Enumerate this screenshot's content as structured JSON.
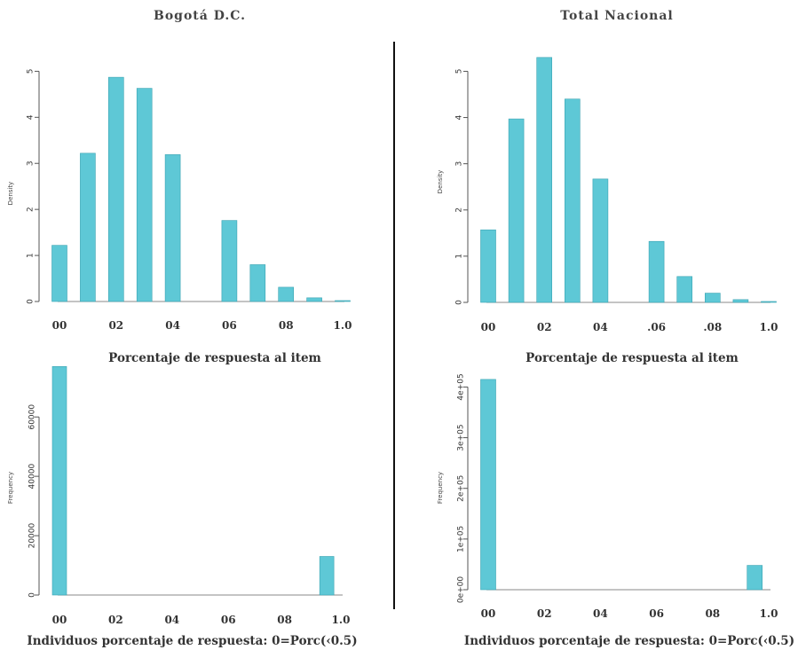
{
  "headers": {
    "left": "Bogotá D.C.",
    "right": "Total Nacional"
  },
  "chart_data": [
    {
      "type": "bar",
      "panel": "top-left",
      "xlabel": "Porcentaje de respuesta al item",
      "ylabel": "Density",
      "x_ticks": [
        "00",
        "02",
        "04",
        "06",
        "08",
        "1.0"
      ],
      "y_ticks": [
        "0",
        "1",
        "2",
        "3",
        "4",
        "5"
      ],
      "xlim": [
        0,
        1
      ],
      "ylim": [
        0,
        5.2
      ],
      "bins": [
        {
          "x": 0.0,
          "value": 1.22
        },
        {
          "x": 0.1,
          "value": 3.22
        },
        {
          "x": 0.2,
          "value": 4.87
        },
        {
          "x": 0.3,
          "value": 4.63
        },
        {
          "x": 0.4,
          "value": 3.19
        },
        {
          "x": 0.5,
          "value": 0.0
        },
        {
          "x": 0.6,
          "value": 1.76
        },
        {
          "x": 0.7,
          "value": 0.8
        },
        {
          "x": 0.8,
          "value": 0.31
        },
        {
          "x": 0.9,
          "value": 0.08
        },
        {
          "x": 1.0,
          "value": 0.02
        }
      ]
    },
    {
      "type": "bar",
      "panel": "top-right",
      "xlabel": "Porcentaje de respuesta al item",
      "ylabel": "Density",
      "x_ticks": [
        "00",
        "02",
        "04",
        ".06",
        ".08",
        "1.0"
      ],
      "y_ticks": [
        "0",
        "1",
        "2",
        "3",
        "4",
        "5"
      ],
      "xlim": [
        0,
        1
      ],
      "ylim": [
        0,
        5.2
      ],
      "bins": [
        {
          "x": 0.0,
          "value": 1.57
        },
        {
          "x": 0.1,
          "value": 3.97
        },
        {
          "x": 0.2,
          "value": 5.3
        },
        {
          "x": 0.3,
          "value": 4.4
        },
        {
          "x": 0.4,
          "value": 2.67
        },
        {
          "x": 0.5,
          "value": 0.0
        },
        {
          "x": 0.6,
          "value": 1.32
        },
        {
          "x": 0.7,
          "value": 0.56
        },
        {
          "x": 0.8,
          "value": 0.2
        },
        {
          "x": 0.9,
          "value": 0.06
        },
        {
          "x": 1.0,
          "value": 0.02
        }
      ]
    },
    {
      "type": "bar",
      "panel": "bottom-left",
      "xlabel": "Individuos porcentaje de respuesta: 0=Porc(‹0.5)",
      "ylabel": "Frequency",
      "x_ticks": [
        "00",
        "02",
        "04",
        "06",
        "08",
        "1.0"
      ],
      "y_ticks": [
        "0",
        "20000",
        "40000",
        "60000"
      ],
      "y_tick_values": [
        0,
        20000,
        40000,
        60000
      ],
      "xlim": [
        0,
        1
      ],
      "ylim": [
        0,
        75000
      ],
      "bins": [
        {
          "x": 0.0,
          "value": 77000
        },
        {
          "x": 0.95,
          "value": 13000
        }
      ]
    },
    {
      "type": "bar",
      "panel": "bottom-right",
      "xlabel": "Individuos porcentaje de respuesta: 0=Porc(‹0.5)",
      "ylabel": "Frequency",
      "x_ticks": [
        "00",
        "02",
        "04",
        "06",
        "08",
        "1.0"
      ],
      "y_ticks": [
        "0e+00",
        "1e+05",
        "2e+05",
        "3e+05",
        "4e+05"
      ],
      "y_tick_values": [
        0,
        100000,
        200000,
        300000,
        400000
      ],
      "xlim": [
        0,
        1
      ],
      "ylim": [
        0,
        420000
      ],
      "bins": [
        {
          "x": 0.0,
          "value": 415000
        },
        {
          "x": 0.95,
          "value": 48000
        }
      ]
    }
  ]
}
